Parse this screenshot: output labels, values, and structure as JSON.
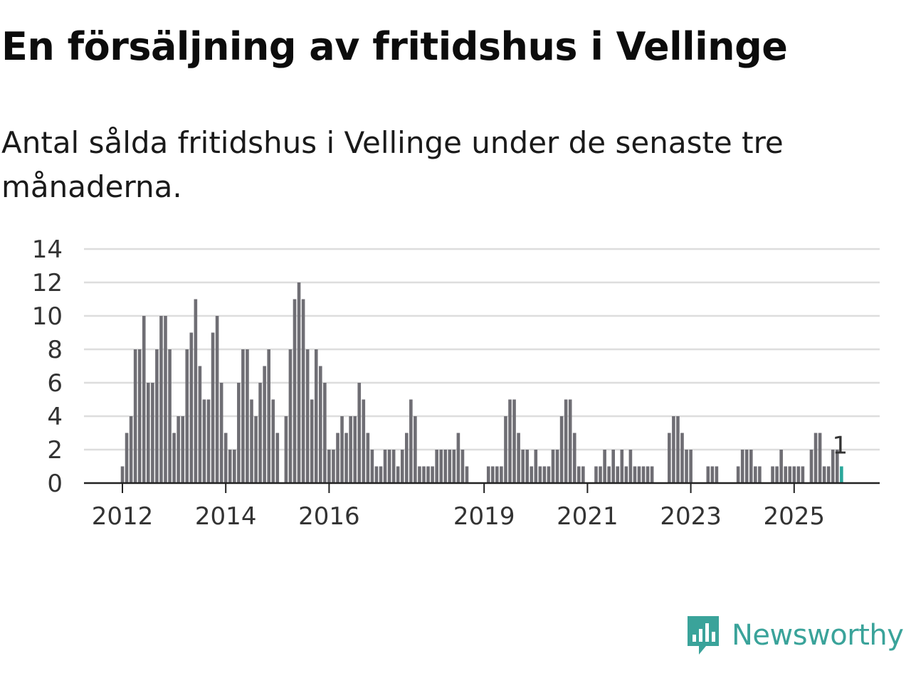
{
  "title": "En försäljning av fritidshus i Vellinge",
  "subtitle": "Antal sålda fritidshus i Vellinge under de senaste tre månaderna.",
  "brand": {
    "name": "Newsworthy",
    "color": "#3aa39a"
  },
  "colors": {
    "bar": "#6f6e74",
    "highlight": "#2aa79b",
    "grid": "#dddddd",
    "axis": "#222222"
  },
  "chart_data": {
    "type": "bar",
    "title": "En försäljning av fritidshus i Vellinge",
    "xlabel": "",
    "ylabel": "",
    "ylim": [
      0,
      14
    ],
    "yticks": [
      "0",
      "2",
      "4",
      "6",
      "8",
      "10",
      "12",
      "14"
    ],
    "xticks": [
      {
        "label": "2012",
        "index": 0
      },
      {
        "label": "2014",
        "index": 24
      },
      {
        "label": "2016",
        "index": 48
      },
      {
        "label": "2019",
        "index": 84
      },
      {
        "label": "2021",
        "index": 108
      },
      {
        "label": "2023",
        "index": 132
      },
      {
        "label": "2025",
        "index": 156
      }
    ],
    "start": "2012-01",
    "values": [
      1,
      3,
      4,
      8,
      8,
      10,
      6,
      6,
      8,
      10,
      10,
      8,
      3,
      4,
      4,
      8,
      9,
      11,
      7,
      5,
      5,
      9,
      10,
      6,
      3,
      2,
      2,
      6,
      8,
      8,
      5,
      4,
      6,
      7,
      8,
      5,
      3,
      0,
      4,
      8,
      11,
      12,
      11,
      8,
      5,
      8,
      7,
      6,
      2,
      2,
      3,
      4,
      3,
      4,
      4,
      6,
      5,
      3,
      2,
      1,
      1,
      2,
      2,
      2,
      1,
      2,
      3,
      5,
      4,
      1,
      1,
      1,
      1,
      2,
      2,
      2,
      2,
      2,
      3,
      2,
      1,
      0,
      0,
      0,
      0,
      1,
      1,
      1,
      1,
      4,
      5,
      5,
      3,
      2,
      2,
      1,
      2,
      1,
      1,
      1,
      2,
      2,
      4,
      5,
      5,
      3,
      1,
      1,
      0,
      0,
      1,
      1,
      2,
      1,
      2,
      1,
      2,
      1,
      2,
      1,
      1,
      1,
      1,
      1,
      0,
      0,
      0,
      3,
      4,
      4,
      3,
      2,
      2,
      0,
      0,
      0,
      1,
      1,
      1,
      0,
      0,
      0,
      0,
      1,
      2,
      2,
      2,
      1,
      1,
      0,
      0,
      1,
      1,
      2,
      1,
      1,
      1,
      1,
      1,
      0,
      2,
      3,
      3,
      1,
      1,
      2,
      2,
      1
    ],
    "highlight_last": true,
    "last_label": "1"
  }
}
